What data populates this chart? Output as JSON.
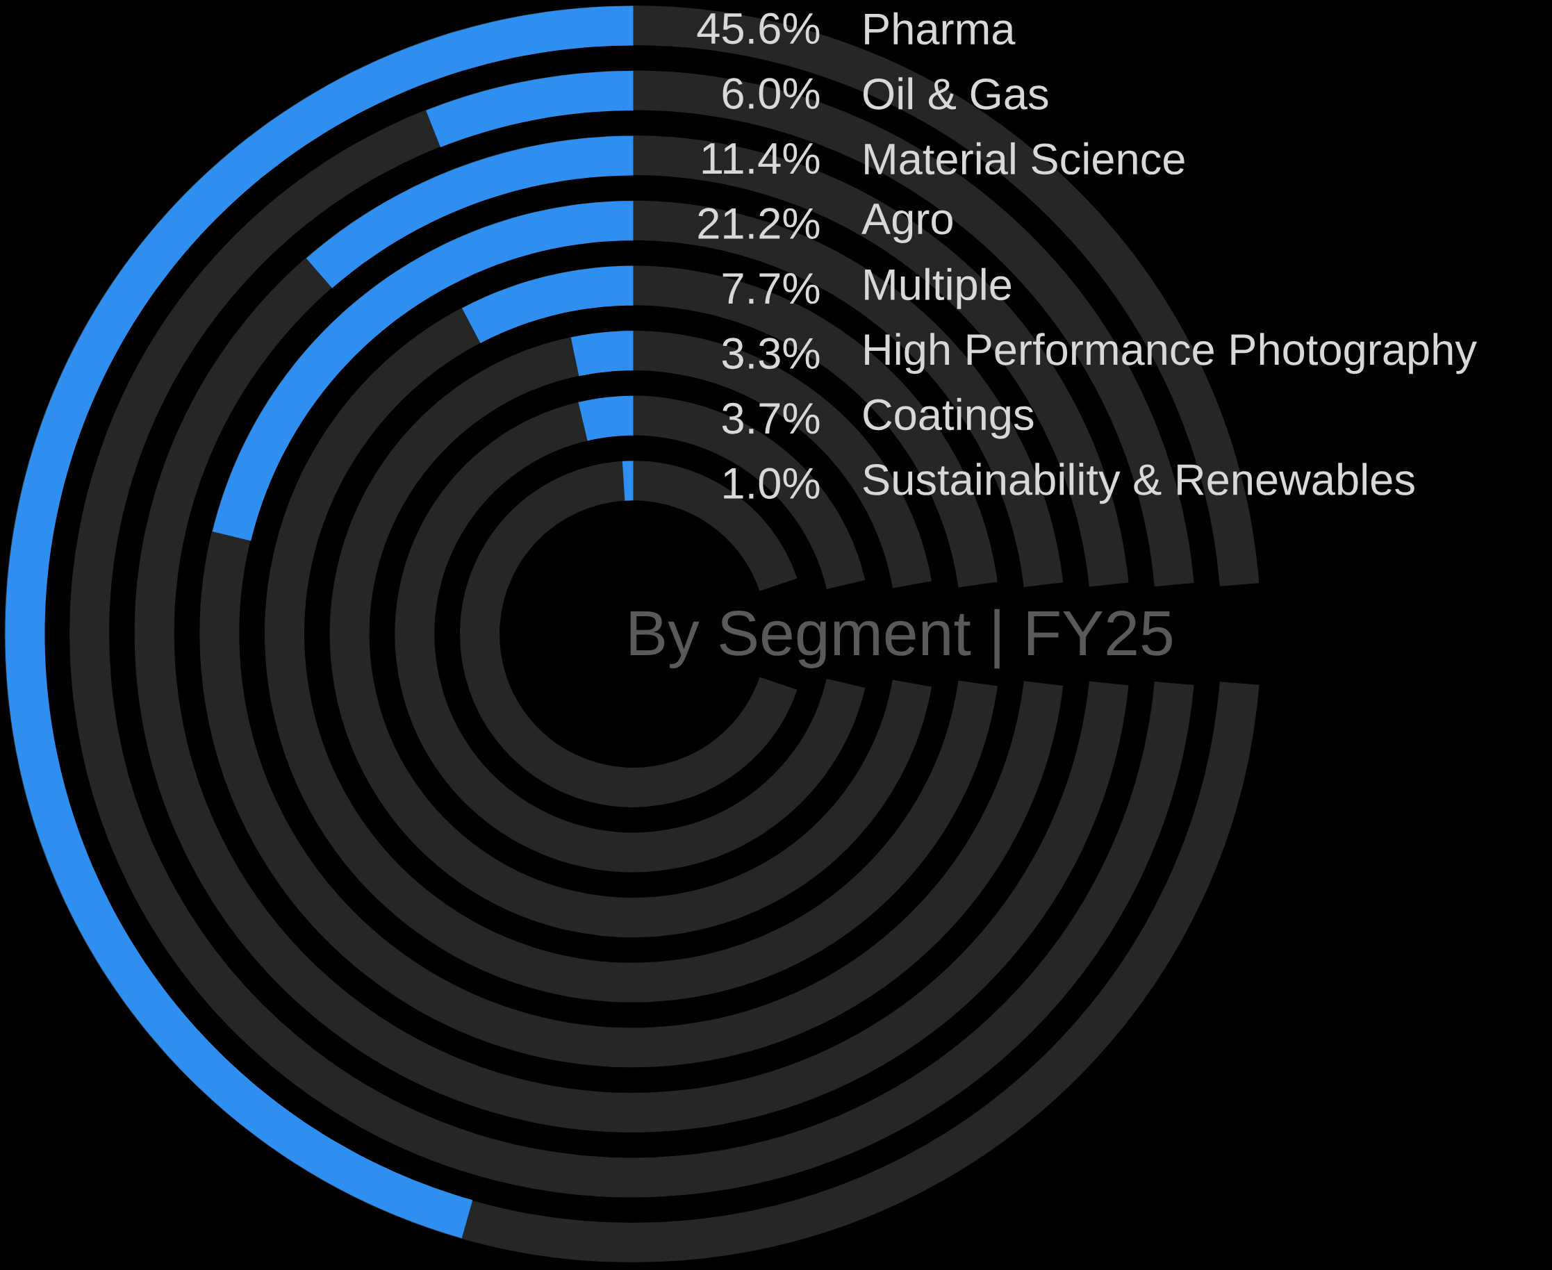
{
  "chart_data": {
    "type": "other",
    "title": "By Segment | FY25",
    "categories": [
      "Pharma",
      "Oil & Gas",
      "Material Science",
      "Agro",
      "Multiple",
      "High Performance Photography",
      "Coatings",
      "Sustainability & Renewables"
    ],
    "values": [
      45.6,
      6.0,
      11.4,
      21.2,
      7.7,
      3.3,
      3.7,
      1.0
    ],
    "value_labels": [
      "45.6%",
      "6.0%",
      "11.4%",
      "21.2%",
      "7.7%",
      "3.3%",
      "3.7%",
      "1.0%"
    ],
    "color": "#2e8ff0"
  }
}
